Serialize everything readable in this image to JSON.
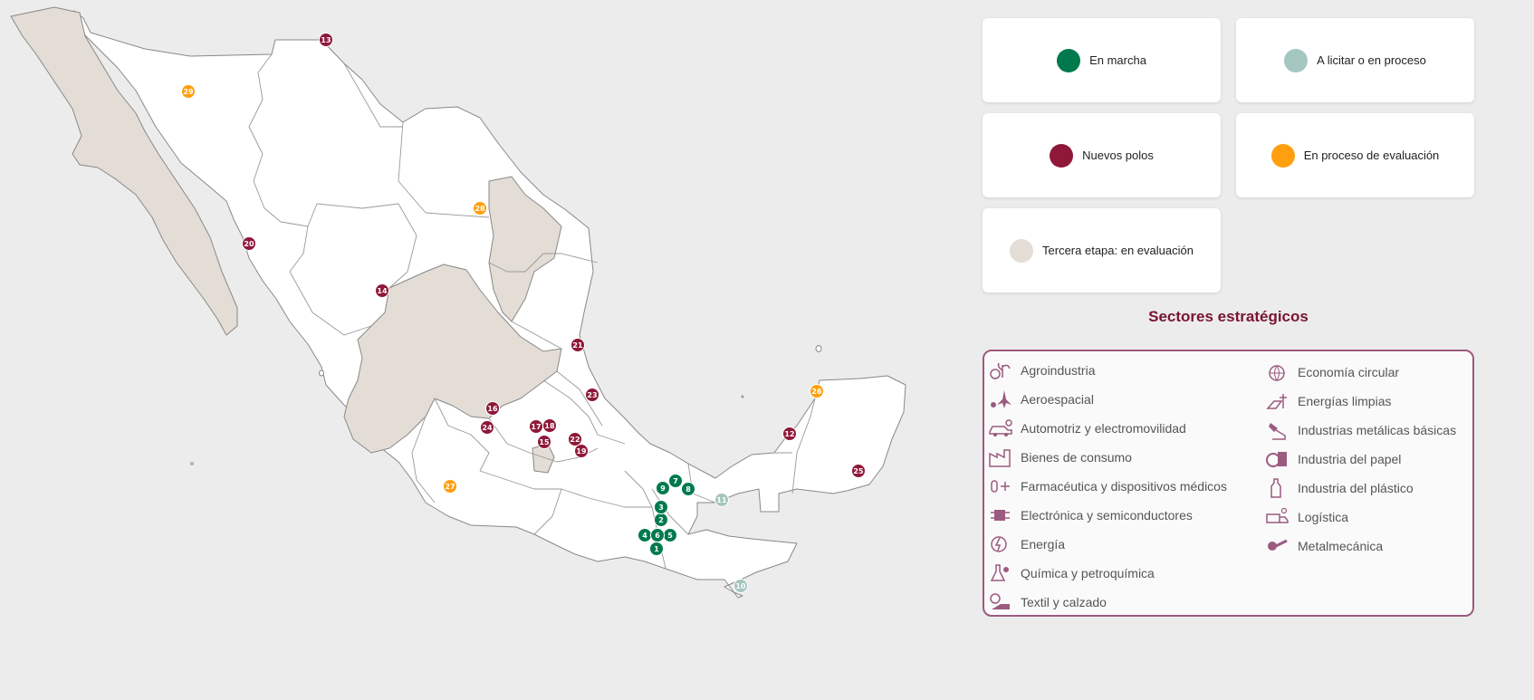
{
  "colors": {
    "en_marcha": "#007a4d",
    "a_licitar": "#a4c7bf",
    "nuevos_polos": "#8f1838",
    "evaluacion": "#ff9f0f",
    "tercera_etapa": "#e3ddd6",
    "accent": "#7a1530",
    "sector_icon": "#9b5b7f"
  },
  "legend": {
    "en_marcha": "En marcha",
    "a_licitar": "A licitar o en proceso",
    "nuevos_polos": "Nuevos polos",
    "evaluacion": "En proceso de evaluación",
    "tercera_etapa": "Tercera etapa: en evaluación"
  },
  "sectors_title": "Sectores estratégicos",
  "sectors_left": [
    {
      "label": "Agroindustria",
      "icon": "agro-icon"
    },
    {
      "label": "Aeroespacial",
      "icon": "aerospace-icon"
    },
    {
      "label": "Automotriz y electromovilidad",
      "icon": "car-icon"
    },
    {
      "label": "Bienes de consumo",
      "icon": "factory-icon"
    },
    {
      "label": "Farmacéutica y dispositivos médicos",
      "icon": "pharma-icon"
    },
    {
      "label": "Electrónica y semiconductores",
      "icon": "chip-icon"
    },
    {
      "label": "Energía",
      "icon": "energy-icon"
    },
    {
      "label": "Química y petroquímica",
      "icon": "flask-icon"
    },
    {
      "label": "Textil y calzado",
      "icon": "textile-icon"
    }
  ],
  "sectors_right": [
    {
      "label": "Economía circular",
      "icon": "globe-icon"
    },
    {
      "label": "Energías limpias",
      "icon": "solar-icon"
    },
    {
      "label": "Industrias metálicas básicas",
      "icon": "metal-icon"
    },
    {
      "label": "Industria del papel",
      "icon": "paper-icon"
    },
    {
      "label": "Industria del plástico",
      "icon": "bottle-icon"
    },
    {
      "label": "Logística",
      "icon": "truck-icon"
    },
    {
      "label": "Metalmecánica",
      "icon": "wrench-icon"
    }
  ],
  "markers": [
    {
      "n": "1",
      "status": "en_marcha"
    },
    {
      "n": "2",
      "status": "en_marcha"
    },
    {
      "n": "3",
      "status": "en_marcha"
    },
    {
      "n": "4",
      "status": "en_marcha"
    },
    {
      "n": "5",
      "status": "en_marcha"
    },
    {
      "n": "6",
      "status": "en_marcha"
    },
    {
      "n": "7",
      "status": "en_marcha"
    },
    {
      "n": "8",
      "status": "en_marcha"
    },
    {
      "n": "9",
      "status": "en_marcha"
    },
    {
      "n": "10",
      "status": "a_licitar"
    },
    {
      "n": "11",
      "status": "a_licitar"
    },
    {
      "n": "12",
      "status": "nuevos_polos"
    },
    {
      "n": "13",
      "status": "nuevos_polos"
    },
    {
      "n": "14",
      "status": "nuevos_polos"
    },
    {
      "n": "15",
      "status": "nuevos_polos"
    },
    {
      "n": "16",
      "status": "nuevos_polos"
    },
    {
      "n": "17",
      "status": "nuevos_polos"
    },
    {
      "n": "18",
      "status": "nuevos_polos"
    },
    {
      "n": "19",
      "status": "nuevos_polos"
    },
    {
      "n": "20",
      "status": "nuevos_polos"
    },
    {
      "n": "21",
      "status": "nuevos_polos"
    },
    {
      "n": "22",
      "status": "nuevos_polos"
    },
    {
      "n": "23",
      "status": "nuevos_polos"
    },
    {
      "n": "24",
      "status": "nuevos_polos"
    },
    {
      "n": "25",
      "status": "nuevos_polos"
    },
    {
      "n": "26",
      "status": "evaluacion"
    },
    {
      "n": "27",
      "status": "evaluacion"
    },
    {
      "n": "28",
      "status": "evaluacion"
    },
    {
      "n": "29",
      "status": "evaluacion"
    }
  ]
}
